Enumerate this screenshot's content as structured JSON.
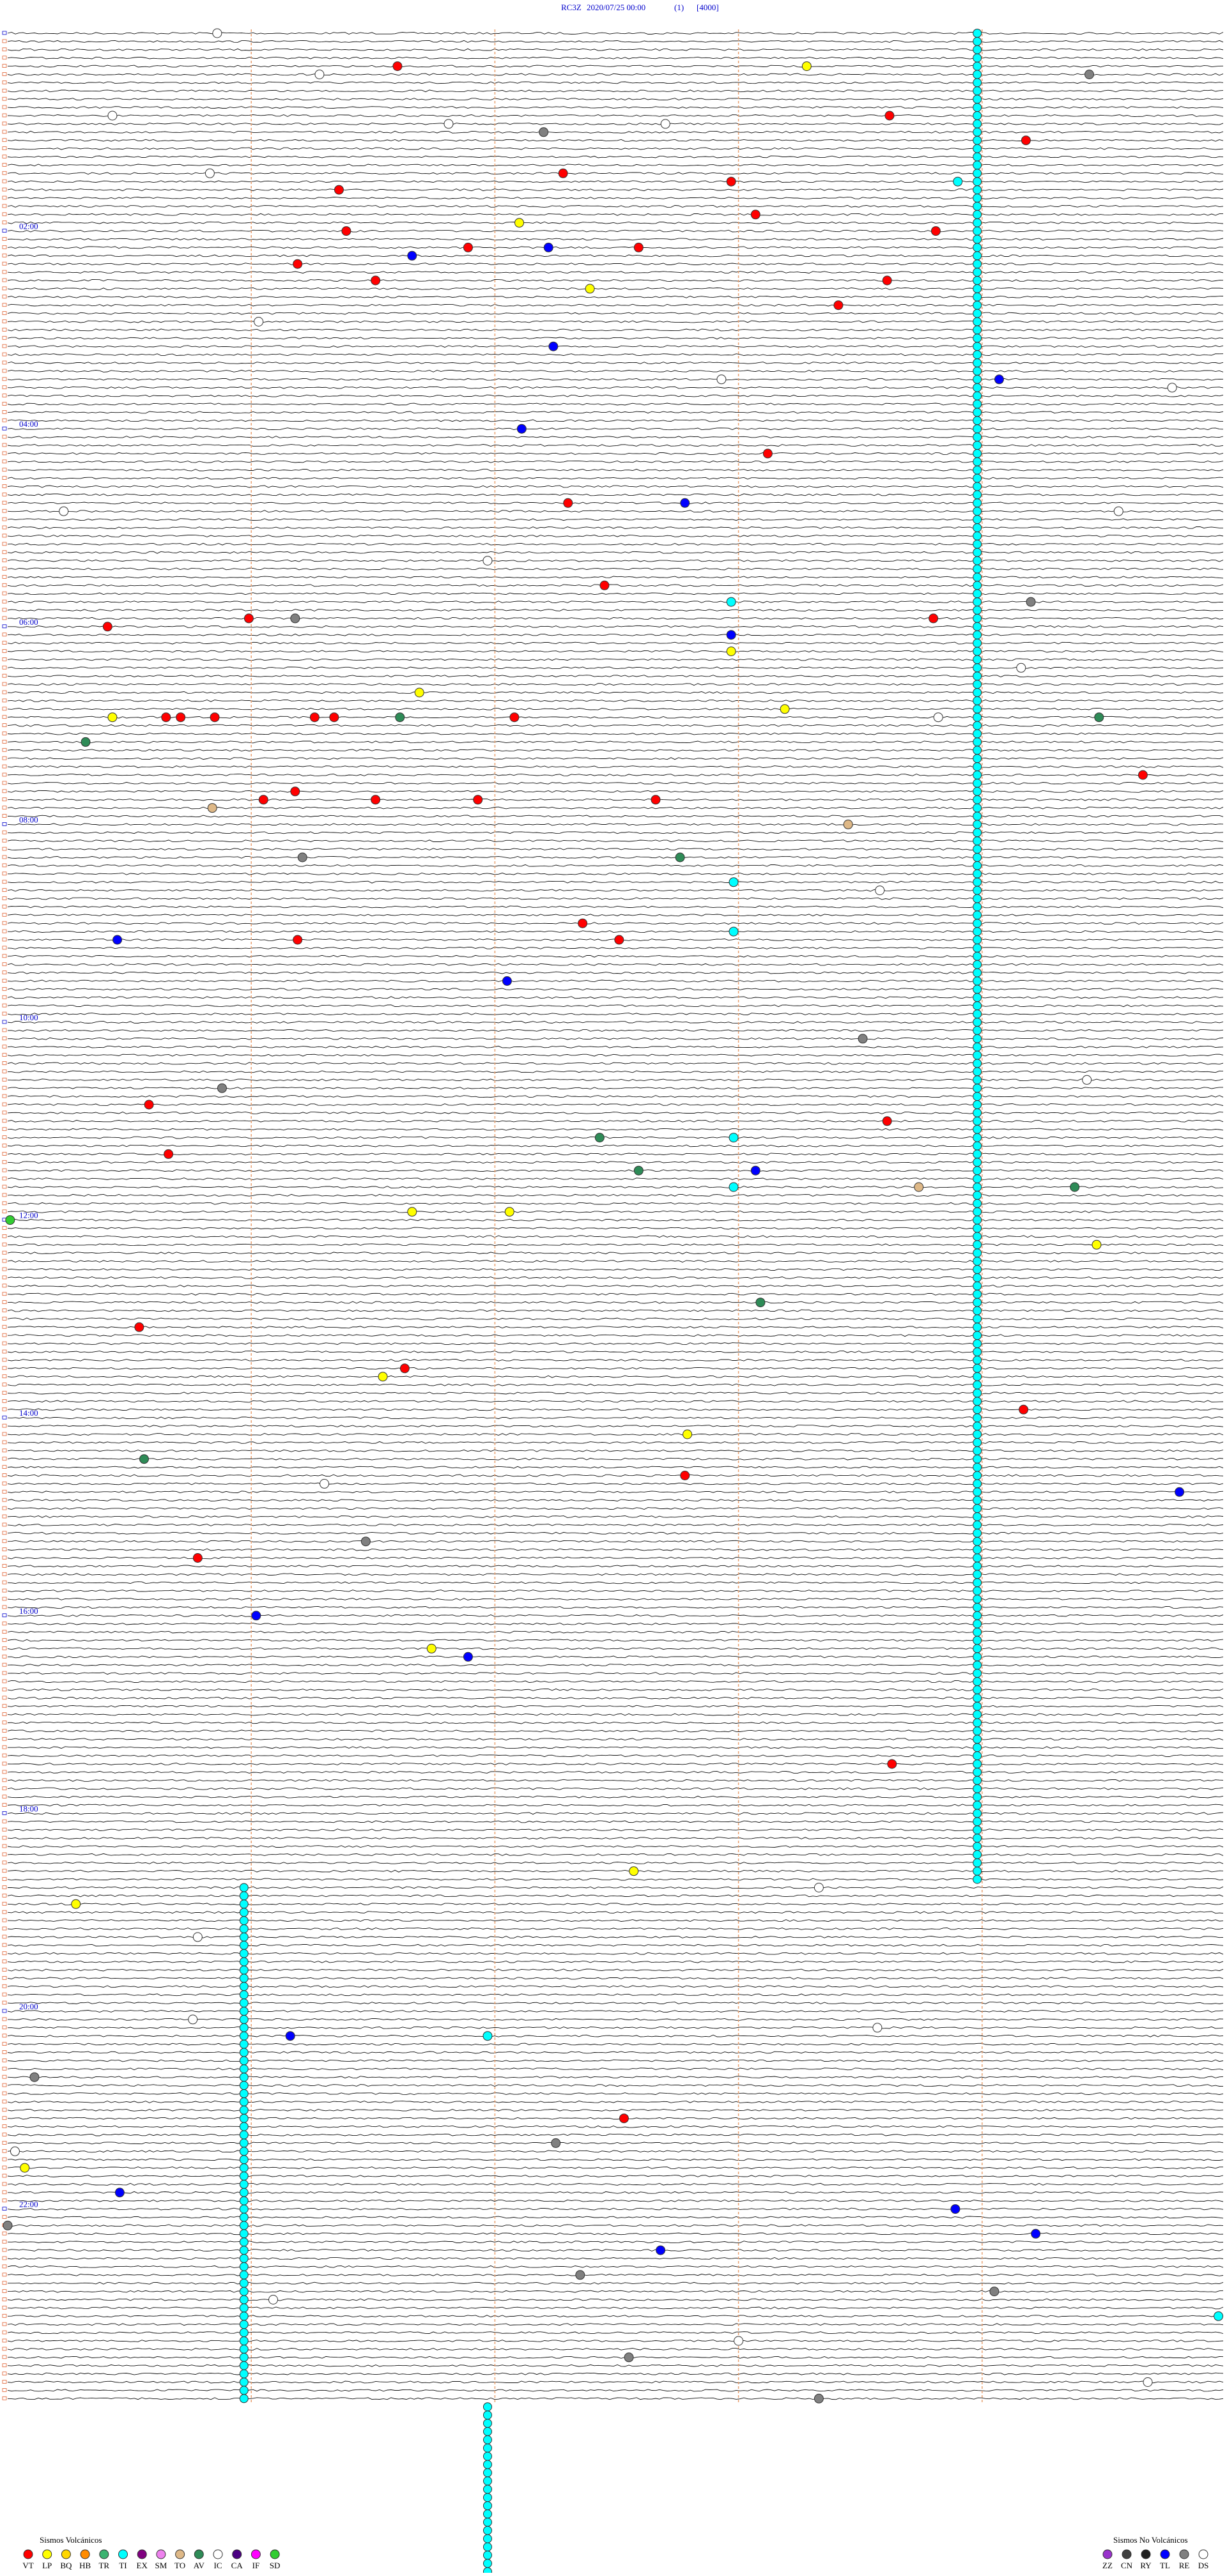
{
  "chart_data": {
    "type": "helicorder",
    "header": {
      "station": "RC3Z",
      "datetime": "2020/07/25 00:00",
      "channel": "(1)",
      "gain": "[4000]"
    },
    "rows": 288,
    "xlim": [
      0,
      5
    ],
    "xticks": [
      1,
      2,
      3,
      4
    ],
    "hour_labels": [
      {
        "row": 24,
        "label": "02:00"
      },
      {
        "row": 48,
        "label": "04:00"
      },
      {
        "row": 72,
        "label": "06:00"
      },
      {
        "row": 96,
        "label": "08:00"
      },
      {
        "row": 120,
        "label": "10:00"
      },
      {
        "row": 144,
        "label": "12:00"
      },
      {
        "row": 168,
        "label": "14:00"
      },
      {
        "row": 192,
        "label": "16:00"
      },
      {
        "row": 216,
        "label": "18:00"
      },
      {
        "row": 240,
        "label": "20:00"
      },
      {
        "row": 264,
        "label": "22:00"
      }
    ],
    "legend_volcanic": {
      "title": "Sismos Volcánicos",
      "types": [
        {
          "code": "VT",
          "color": "#ff0000"
        },
        {
          "code": "LP",
          "color": "#ffff00"
        },
        {
          "code": "BQ",
          "color": "#ffd700"
        },
        {
          "code": "HB",
          "color": "#ff8c00"
        },
        {
          "code": "TR",
          "color": "#3cb371"
        },
        {
          "code": "TI",
          "color": "#00ffff"
        },
        {
          "code": "EX",
          "color": "#800080"
        },
        {
          "code": "SM",
          "color": "#ee82ee"
        },
        {
          "code": "TO",
          "color": "#deb887"
        },
        {
          "code": "AV",
          "color": "#2e8b57"
        },
        {
          "code": "IC",
          "color": "#ffffff"
        },
        {
          "code": "CA",
          "color": "#4b0082"
        },
        {
          "code": "IF",
          "color": "#ff00ff"
        },
        {
          "code": "SD",
          "color": "#32cd32"
        }
      ]
    },
    "legend_nonvolcanic": {
      "title": "Sismos No Volcánicos",
      "types": [
        {
          "code": "ZZ",
          "color": "#9932cc"
        },
        {
          "code": "CN",
          "color": "#404040"
        },
        {
          "code": "RY",
          "color": "#202020"
        },
        {
          "code": "TL",
          "color": "#0000ff"
        },
        {
          "code": "RE",
          "color": "#808080"
        },
        {
          "code": "DS",
          "color": "#ffffff"
        }
      ]
    },
    "tremor_chains": [
      {
        "type": "TI",
        "minute": 3.98,
        "row_start": 0,
        "row_end": 224
      },
      {
        "type": "TI",
        "minute": 0.97,
        "row_start": 225,
        "row_end": 287
      },
      {
        "type": "TI",
        "minute": 1.97,
        "row_start": 288,
        "row_end": 308
      }
    ],
    "events": [
      {
        "type": "DS",
        "row": 0,
        "minute": 0.86
      },
      {
        "type": "VT",
        "row": 4,
        "minute": 1.6
      },
      {
        "type": "DS",
        "row": 5,
        "minute": 1.28
      },
      {
        "type": "LP",
        "row": 4,
        "minute": 3.28
      },
      {
        "type": "RE",
        "row": 5,
        "minute": 4.44
      },
      {
        "type": "VT",
        "row": 10,
        "minute": 3.62
      },
      {
        "type": "RE",
        "row": 12,
        "minute": 2.2
      },
      {
        "type": "VT",
        "row": 13,
        "minute": 4.18
      },
      {
        "type": "VT",
        "row": 19,
        "minute": 1.36
      },
      {
        "type": "VT",
        "row": 17,
        "minute": 2.28
      },
      {
        "type": "VT",
        "row": 18,
        "minute": 2.97
      },
      {
        "type": "TI",
        "row": 18,
        "minute": 3.9
      },
      {
        "type": "LP",
        "row": 23,
        "minute": 2.1
      },
      {
        "type": "VT",
        "row": 22,
        "minute": 3.07
      },
      {
        "type": "VT",
        "row": 24,
        "minute": 1.39
      },
      {
        "type": "TL",
        "row": 27,
        "minute": 1.66
      },
      {
        "type": "TL",
        "row": 26,
        "minute": 2.22
      },
      {
        "type": "VT",
        "row": 26,
        "minute": 2.59
      },
      {
        "type": "VT",
        "row": 26,
        "minute": 1.89
      },
      {
        "type": "VT",
        "row": 24,
        "minute": 3.81
      },
      {
        "type": "VT",
        "row": 30,
        "minute": 1.51
      },
      {
        "type": "VT",
        "row": 28,
        "minute": 1.19
      },
      {
        "type": "LP",
        "row": 31,
        "minute": 2.39
      },
      {
        "type": "VT",
        "row": 30,
        "minute": 3.61
      },
      {
        "type": "VT",
        "row": 33,
        "minute": 3.41
      },
      {
        "type": "TL",
        "row": 38,
        "minute": 2.24
      },
      {
        "type": "TL",
        "row": 42,
        "minute": 4.07
      },
      {
        "type": "TL",
        "row": 48,
        "minute": 2.11
      },
      {
        "type": "VT",
        "row": 51,
        "minute": 3.12
      },
      {
        "type": "VT",
        "row": 57,
        "minute": 2.3
      },
      {
        "type": "TL",
        "row": 57,
        "minute": 2.78
      },
      {
        "type": "VT",
        "row": 67,
        "minute": 2.45
      },
      {
        "type": "VT",
        "row": 71,
        "minute": 0.99
      },
      {
        "type": "RE",
        "row": 71,
        "minute": 1.18
      },
      {
        "type": "VT",
        "row": 72,
        "minute": 0.41
      },
      {
        "type": "VT",
        "row": 71,
        "minute": 3.8
      },
      {
        "type": "RE",
        "row": 69,
        "minute": 4.2
      },
      {
        "type": "TI",
        "row": 69,
        "minute": 2.97
      },
      {
        "type": "TL",
        "row": 73,
        "minute": 2.97
      },
      {
        "type": "LP",
        "row": 75,
        "minute": 2.97
      },
      {
        "type": "LP",
        "row": 83,
        "minute": 0.43
      },
      {
        "type": "VT",
        "row": 83,
        "minute": 0.65
      },
      {
        "type": "VT",
        "row": 83,
        "minute": 0.71
      },
      {
        "type": "VT",
        "row": 83,
        "minute": 0.85
      },
      {
        "type": "VT",
        "row": 83,
        "minute": 1.26
      },
      {
        "type": "VT",
        "row": 83,
        "minute": 1.34
      },
      {
        "type": "AV",
        "row": 83,
        "minute": 1.61
      },
      {
        "type": "VT",
        "row": 83,
        "minute": 2.08
      },
      {
        "type": "LP",
        "row": 80,
        "minute": 1.69
      },
      {
        "type": "LP",
        "row": 82,
        "minute": 3.19
      },
      {
        "type": "AV",
        "row": 83,
        "minute": 4.48
      },
      {
        "type": "AV",
        "row": 86,
        "minute": 0.32
      },
      {
        "type": "VT",
        "row": 90,
        "minute": 4.66
      },
      {
        "type": "VT",
        "row": 93,
        "minute": 1.05
      },
      {
        "type": "VT",
        "row": 93,
        "minute": 1.51
      },
      {
        "type": "VT",
        "row": 93,
        "minute": 1.93
      },
      {
        "type": "VT",
        "row": 93,
        "minute": 2.66
      },
      {
        "type": "VT",
        "row": 92,
        "minute": 1.18
      },
      {
        "type": "TO",
        "row": 94,
        "minute": 0.84
      },
      {
        "type": "TO",
        "row": 96,
        "minute": 3.45
      },
      {
        "type": "RE",
        "row": 100,
        "minute": 1.21
      },
      {
        "type": "AV",
        "row": 100,
        "minute": 2.76
      },
      {
        "type": "TI",
        "row": 103,
        "minute": 2.98
      },
      {
        "type": "VT",
        "row": 108,
        "minute": 2.36
      },
      {
        "type": "TI",
        "row": 109,
        "minute": 2.98
      },
      {
        "type": "TL",
        "row": 110,
        "minute": 0.45
      },
      {
        "type": "VT",
        "row": 110,
        "minute": 1.19
      },
      {
        "type": "VT",
        "row": 110,
        "minute": 2.51
      },
      {
        "type": "TL",
        "row": 115,
        "minute": 2.05
      },
      {
        "type": "VT",
        "row": 130,
        "minute": 0.58
      },
      {
        "type": "VT",
        "row": 132,
        "minute": 3.61
      },
      {
        "type": "AV",
        "row": 134,
        "minute": 2.43
      },
      {
        "type": "TI",
        "row": 134,
        "minute": 2.98
      },
      {
        "type": "VT",
        "row": 136,
        "minute": 0.66
      },
      {
        "type": "AV",
        "row": 138,
        "minute": 2.59
      },
      {
        "type": "TL",
        "row": 138,
        "minute": 3.07
      },
      {
        "type": "TI",
        "row": 140,
        "minute": 2.98
      },
      {
        "type": "AV",
        "row": 140,
        "minute": 4.38
      },
      {
        "type": "TO",
        "row": 140,
        "minute": 3.74
      },
      {
        "type": "LP",
        "row": 143,
        "minute": 1.66
      },
      {
        "type": "LP",
        "row": 143,
        "minute": 2.06
      },
      {
        "type": "SD",
        "row": 144,
        "minute": 0.01
      },
      {
        "type": "LP",
        "row": 147,
        "minute": 4.47
      },
      {
        "type": "AV",
        "row": 154,
        "minute": 3.09
      },
      {
        "type": "VT",
        "row": 157,
        "minute": 0.54
      },
      {
        "type": "VT",
        "row": 162,
        "minute": 1.63
      },
      {
        "type": "LP",
        "row": 163,
        "minute": 1.54
      },
      {
        "type": "VT",
        "row": 167,
        "minute": 4.17
      },
      {
        "type": "LP",
        "row": 170,
        "minute": 2.79
      },
      {
        "type": "AV",
        "row": 173,
        "minute": 0.56
      },
      {
        "type": "VT",
        "row": 175,
        "minute": 2.78
      },
      {
        "type": "TL",
        "row": 177,
        "minute": 4.81
      },
      {
        "type": "VT",
        "row": 185,
        "minute": 0.78
      },
      {
        "type": "TL",
        "row": 192,
        "minute": 1.02
      },
      {
        "type": "LP",
        "row": 196,
        "minute": 1.74
      },
      {
        "type": "TL",
        "row": 197,
        "minute": 1.89
      },
      {
        "type": "VT",
        "row": 210,
        "minute": 3.63
      },
      {
        "type": "LP",
        "row": 223,
        "minute": 2.57
      },
      {
        "type": "LP",
        "row": 227,
        "minute": 0.28
      },
      {
        "type": "TL",
        "row": 243,
        "minute": 1.16
      },
      {
        "type": "TI",
        "row": 243,
        "minute": 1.97
      },
      {
        "type": "VT",
        "row": 253,
        "minute": 2.53
      },
      {
        "type": "LP",
        "row": 259,
        "minute": 0.07
      },
      {
        "type": "TL",
        "row": 262,
        "minute": 0.46
      },
      {
        "type": "TL",
        "row": 264,
        "minute": 3.89
      },
      {
        "type": "TL",
        "row": 269,
        "minute": 2.68
      },
      {
        "type": "TL",
        "row": 267,
        "minute": 4.22
      },
      {
        "type": "TI",
        "row": 277,
        "minute": 4.97
      },
      {
        "type": "DS",
        "row": 10,
        "minute": 0.43
      },
      {
        "type": "DS",
        "row": 11,
        "minute": 1.81
      },
      {
        "type": "DS",
        "row": 11,
        "minute": 2.7
      },
      {
        "type": "DS",
        "row": 17,
        "minute": 0.83
      },
      {
        "type": "DS",
        "row": 42,
        "minute": 2.93
      },
      {
        "type": "DS",
        "row": 43,
        "minute": 4.78
      },
      {
        "type": "DS",
        "row": 58,
        "minute": 0.23
      },
      {
        "type": "DS",
        "row": 58,
        "minute": 4.56
      },
      {
        "type": "DS",
        "row": 64,
        "minute": 1.97
      },
      {
        "type": "DS",
        "row": 77,
        "minute": 4.16
      },
      {
        "type": "DS",
        "row": 83,
        "minute": 3.82
      },
      {
        "type": "DS",
        "row": 35,
        "minute": 1.03
      },
      {
        "type": "DS",
        "row": 104,
        "minute": 3.58
      },
      {
        "type": "DS",
        "row": 127,
        "minute": 4.43
      },
      {
        "type": "DS",
        "row": 176,
        "minute": 1.3
      },
      {
        "type": "DS",
        "row": 225,
        "minute": 3.33
      },
      {
        "type": "DS",
        "row": 231,
        "minute": 0.78
      },
      {
        "type": "DS",
        "row": 241,
        "minute": 0.76
      },
      {
        "type": "DS",
        "row": 242,
        "minute": 3.57
      },
      {
        "type": "DS",
        "row": 257,
        "minute": 0.03
      },
      {
        "type": "DS",
        "row": 275,
        "minute": 1.09
      },
      {
        "type": "DS",
        "row": 280,
        "minute": 3.0
      },
      {
        "type": "DS",
        "row": 285,
        "minute": 4.68
      },
      {
        "type": "RE",
        "row": 128,
        "minute": 0.88
      },
      {
        "type": "RE",
        "row": 122,
        "minute": 3.51
      },
      {
        "type": "RE",
        "row": 274,
        "minute": 4.05
      },
      {
        "type": "RE",
        "row": 256,
        "minute": 2.25
      },
      {
        "type": "RE",
        "row": 272,
        "minute": 2.35
      },
      {
        "type": "RE",
        "row": 282,
        "minute": 2.55
      },
      {
        "type": "RE",
        "row": 287,
        "minute": 3.33
      },
      {
        "type": "RE",
        "row": 248,
        "minute": 0.11
      },
      {
        "type": "RE",
        "row": 266,
        "minute": 0.0
      },
      {
        "type": "RE",
        "row": 183,
        "minute": 1.47
      }
    ]
  }
}
